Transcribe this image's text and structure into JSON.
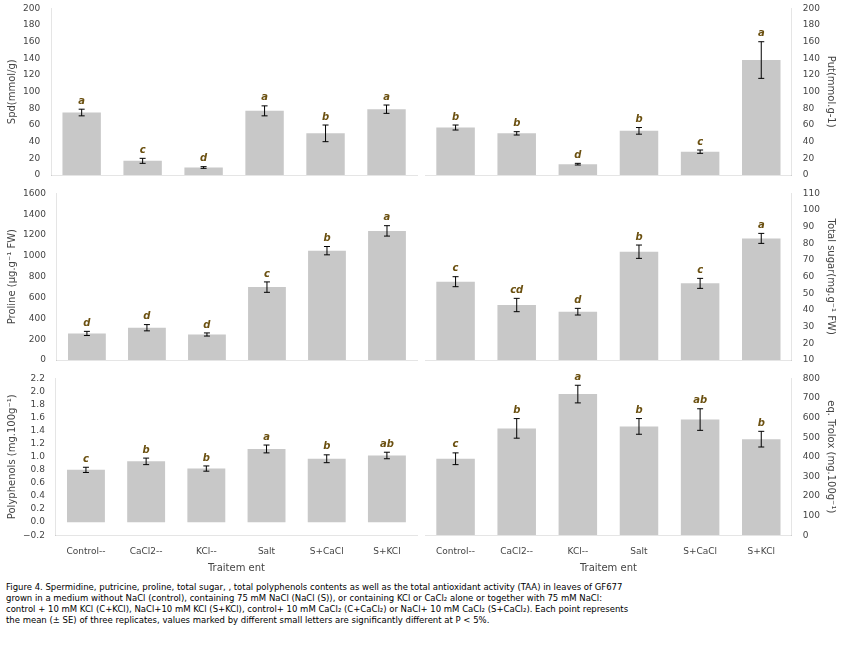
{
  "caption": "Figure 4. Spermidine, putricine, proline, total sugar, , total polyphenols contents as well as the total antioxidant activity (TAA) in leaves of GF677\ngrown in a medium without NaCl (control), containing 75 mM NaCl (NaCl (S)), or containing KCl or CaCl₂ alone or together with 75 mM NaCl:\ncontrol + 10 mM KCl (C+KCl), NaCl+10 mM KCl (S+KCl), control+ 10 mM CaCl₂ (C+CaCl₂) or NaCl+ 10 mM CaCl₂ (S+CaCl₂). Each point represents\nthe mean (± SE) of three replicates, values marked by different small letters are significantly different at P < 5%.",
  "chart_data": [
    {
      "type": "bar",
      "categories": [
        "Control--",
        "CaCl2--",
        "KCl--",
        "Salt",
        "S+CaCl",
        "S+KCl"
      ],
      "values": [
        75,
        17,
        9,
        77,
        50,
        79
      ],
      "errors": [
        4,
        3,
        1,
        6,
        10,
        5
      ],
      "annotations": [
        "a",
        "c",
        "d",
        "a",
        "b",
        "a"
      ],
      "ylim": [
        0,
        200
      ],
      "yticks": [
        0,
        20,
        40,
        60,
        80,
        100,
        120,
        140,
        160,
        180,
        200
      ],
      "ylabel": "Spd(mmol/g)",
      "color": "#c8c8c8",
      "grid": false,
      "tick_labels": "y"
    },
    {
      "type": "bar",
      "categories": [
        "Control--",
        "CaCl2--",
        "KCl--",
        "Salt",
        "S+CaCl",
        "S+KCl"
      ],
      "values": [
        57,
        50,
        13,
        53,
        28,
        138
      ],
      "errors": [
        3,
        2,
        1,
        4,
        2,
        22
      ],
      "annotations": [
        "b",
        "b",
        "d",
        "b",
        "c",
        "a"
      ],
      "ylim": [
        0,
        200
      ],
      "yticks": [
        0,
        20,
        40,
        60,
        80,
        100,
        120,
        140,
        160,
        180,
        200
      ],
      "ylabel": "Put(mmol.g-1)",
      "color": "#c8c8c8",
      "grid": false,
      "tick_labels": "y"
    },
    {
      "type": "bar",
      "categories": [
        "Control--",
        "CaCl2--",
        "KCl--",
        "Salt",
        "S+CaCl",
        "S+KCl"
      ],
      "values": [
        255,
        310,
        245,
        700,
        1050,
        1240
      ],
      "errors": [
        20,
        30,
        15,
        50,
        40,
        50
      ],
      "annotations": [
        "d",
        "d",
        "d",
        "c",
        "b",
        "a"
      ],
      "ylim": [
        0,
        1600
      ],
      "yticks": [
        0,
        200,
        400,
        600,
        800,
        1000,
        1200,
        1400,
        1600
      ],
      "ylabel": "Proline (μg.g⁻¹ FW)",
      "color": "#c8c8c8",
      "grid": false,
      "tick_labels": "y"
    },
    {
      "type": "bar",
      "categories": [
        "Control--",
        "CaCl2--",
        "KCl--",
        "Salt",
        "S+CaCl",
        "S+KCl"
      ],
      "values": [
        57,
        43,
        39,
        75,
        56,
        83
      ],
      "errors": [
        3,
        4,
        2,
        4,
        3,
        3
      ],
      "annotations": [
        "c",
        "cd",
        "d",
        "b",
        "c",
        "a"
      ],
      "ylim": [
        10,
        110
      ],
      "yticks": [
        10,
        20,
        30,
        40,
        50,
        60,
        70,
        80,
        90,
        100,
        110
      ],
      "ylabel": "Total sugar(mg.g⁻¹ FW)",
      "color": "#c8c8c8",
      "grid": false,
      "tick_labels": "y"
    },
    {
      "type": "bar",
      "categories": [
        "Control--",
        "CaCl2--",
        "KCl--",
        "Salt",
        "S+CaCl",
        "S+KCl"
      ],
      "values": [
        0.8,
        0.93,
        0.82,
        1.12,
        0.97,
        1.02
      ],
      "errors": [
        0.04,
        0.05,
        0.04,
        0.06,
        0.06,
        0.05
      ],
      "annotations": [
        "c",
        "b",
        "b",
        "a",
        "b",
        "ab"
      ],
      "ylim": [
        -0.2,
        2.2
      ],
      "yticks": [
        {
          "value": -0.2,
          "label": "−0.2"
        },
        {
          "value": 0,
          "label": "0.0"
        },
        0.2,
        0.4,
        0.6,
        0.8,
        {
          "value": 1,
          "label": "1.0"
        },
        1.2,
        1.4,
        1.6,
        1.8,
        {
          "value": 2,
          "label": "2.0"
        },
        2.2
      ],
      "ylabel": "Polyphenols (mg.100g⁻¹)",
      "xlabel": "Traitem ent",
      "color": "#c8c8c8",
      "grid": false
    },
    {
      "type": "bar",
      "categories": [
        "Control--",
        "CaCl2--",
        "KCl--",
        "Salt",
        "S+CaCl",
        "S+KCl"
      ],
      "values": [
        390,
        545,
        720,
        555,
        590,
        490
      ],
      "errors": [
        30,
        50,
        45,
        40,
        55,
        40
      ],
      "annotations": [
        "c",
        "b",
        "a",
        "b",
        "ab",
        "b"
      ],
      "ylim": [
        0,
        800
      ],
      "yticks": [
        0,
        100,
        200,
        300,
        400,
        500,
        600,
        700,
        800
      ],
      "ylabel": "eq. Trolox (mg.100g⁻¹)",
      "xlabel": "Traitem ent",
      "color": "#c8c8c8",
      "grid": false
    }
  ]
}
